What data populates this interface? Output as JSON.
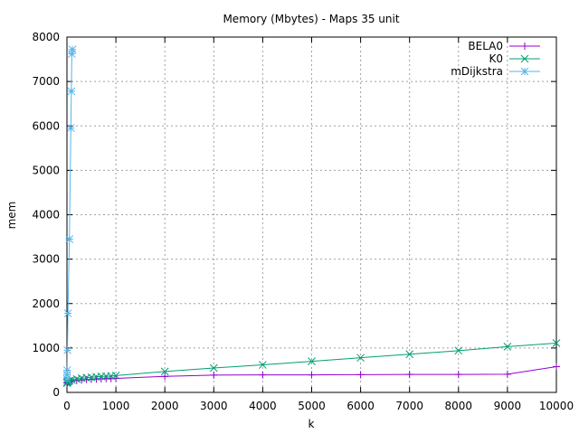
{
  "chart_data": {
    "type": "line",
    "title": "Memory (Mbytes) - Maps 35 unit",
    "xlabel": "k",
    "ylabel": "mem",
    "xlim": [
      0,
      10000
    ],
    "ylim": [
      0,
      8000
    ],
    "xticks": [
      0,
      1000,
      2000,
      3000,
      4000,
      5000,
      6000,
      7000,
      8000,
      9000,
      10000
    ],
    "yticks": [
      0,
      1000,
      2000,
      3000,
      4000,
      5000,
      6000,
      7000,
      8000
    ],
    "grid": true,
    "legend_position": "top-right",
    "series": [
      {
        "name": "BELA0",
        "color": "#9400d3",
        "marker": "plus",
        "points": [
          [
            1,
            210
          ],
          [
            2,
            215
          ],
          [
            5,
            220
          ],
          [
            10,
            225
          ],
          [
            20,
            230
          ],
          [
            50,
            240
          ],
          [
            100,
            255
          ],
          [
            200,
            270
          ],
          [
            300,
            280
          ],
          [
            400,
            290
          ],
          [
            500,
            295
          ],
          [
            600,
            300
          ],
          [
            700,
            305
          ],
          [
            800,
            310
          ],
          [
            900,
            310
          ],
          [
            1000,
            315
          ],
          [
            2000,
            360
          ],
          [
            3000,
            390
          ],
          [
            4000,
            395
          ],
          [
            5000,
            395
          ],
          [
            6000,
            400
          ],
          [
            7000,
            405
          ],
          [
            8000,
            405
          ],
          [
            9000,
            410
          ],
          [
            10000,
            580
          ]
        ]
      },
      {
        "name": "K0",
        "color": "#009e73",
        "marker": "cross",
        "points": [
          [
            1,
            210
          ],
          [
            2,
            215
          ],
          [
            5,
            225
          ],
          [
            10,
            240
          ],
          [
            20,
            250
          ],
          [
            50,
            265
          ],
          [
            100,
            280
          ],
          [
            200,
            300
          ],
          [
            300,
            320
          ],
          [
            400,
            330
          ],
          [
            500,
            340
          ],
          [
            600,
            350
          ],
          [
            700,
            360
          ],
          [
            800,
            365
          ],
          [
            900,
            370
          ],
          [
            1000,
            380
          ],
          [
            2000,
            470
          ],
          [
            3000,
            550
          ],
          [
            4000,
            620
          ],
          [
            5000,
            700
          ],
          [
            6000,
            780
          ],
          [
            7000,
            860
          ],
          [
            8000,
            940
          ],
          [
            9000,
            1030
          ],
          [
            10000,
            1110
          ]
        ]
      },
      {
        "name": "mDijkstra",
        "color": "#56b4e9",
        "marker": "star",
        "points": [
          [
            1,
            300
          ],
          [
            2,
            400
          ],
          [
            5,
            500
          ],
          [
            10,
            950
          ],
          [
            20,
            1780
          ],
          [
            50,
            3450
          ],
          [
            80,
            5950
          ],
          [
            90,
            6780
          ],
          [
            100,
            7620
          ],
          [
            110,
            7720
          ]
        ]
      }
    ]
  }
}
